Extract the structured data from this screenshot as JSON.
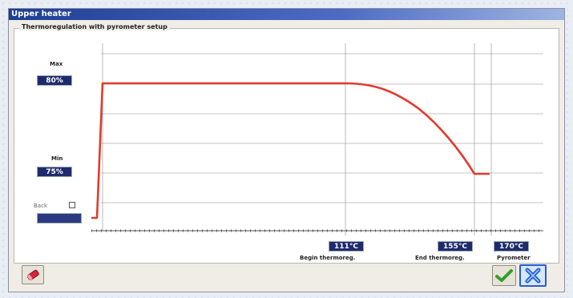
{
  "window": {
    "title": "Upper heater"
  },
  "panel": {
    "title": "Thermoregulation with pyrometer setup"
  },
  "max": {
    "label": "Max",
    "value": "80%"
  },
  "min": {
    "label": "Min",
    "value": "75%"
  },
  "back": {
    "label": "Back",
    "checked": false,
    "value": ""
  },
  "markers": [
    {
      "value": "111°C",
      "label": "Begin thermoreg."
    },
    {
      "value": "155°C",
      "label": "End thermoreg."
    },
    {
      "value": "170°C",
      "label": "Pyrometer"
    }
  ],
  "colors": {
    "curve": "#e23a2c",
    "value_box": "#1e2a6e",
    "titlebar": "#1d3f93"
  },
  "icons": {
    "left_button": "eraser-icon",
    "ok_button": "checkmark-icon",
    "cancel_button": "close-icon"
  }
}
